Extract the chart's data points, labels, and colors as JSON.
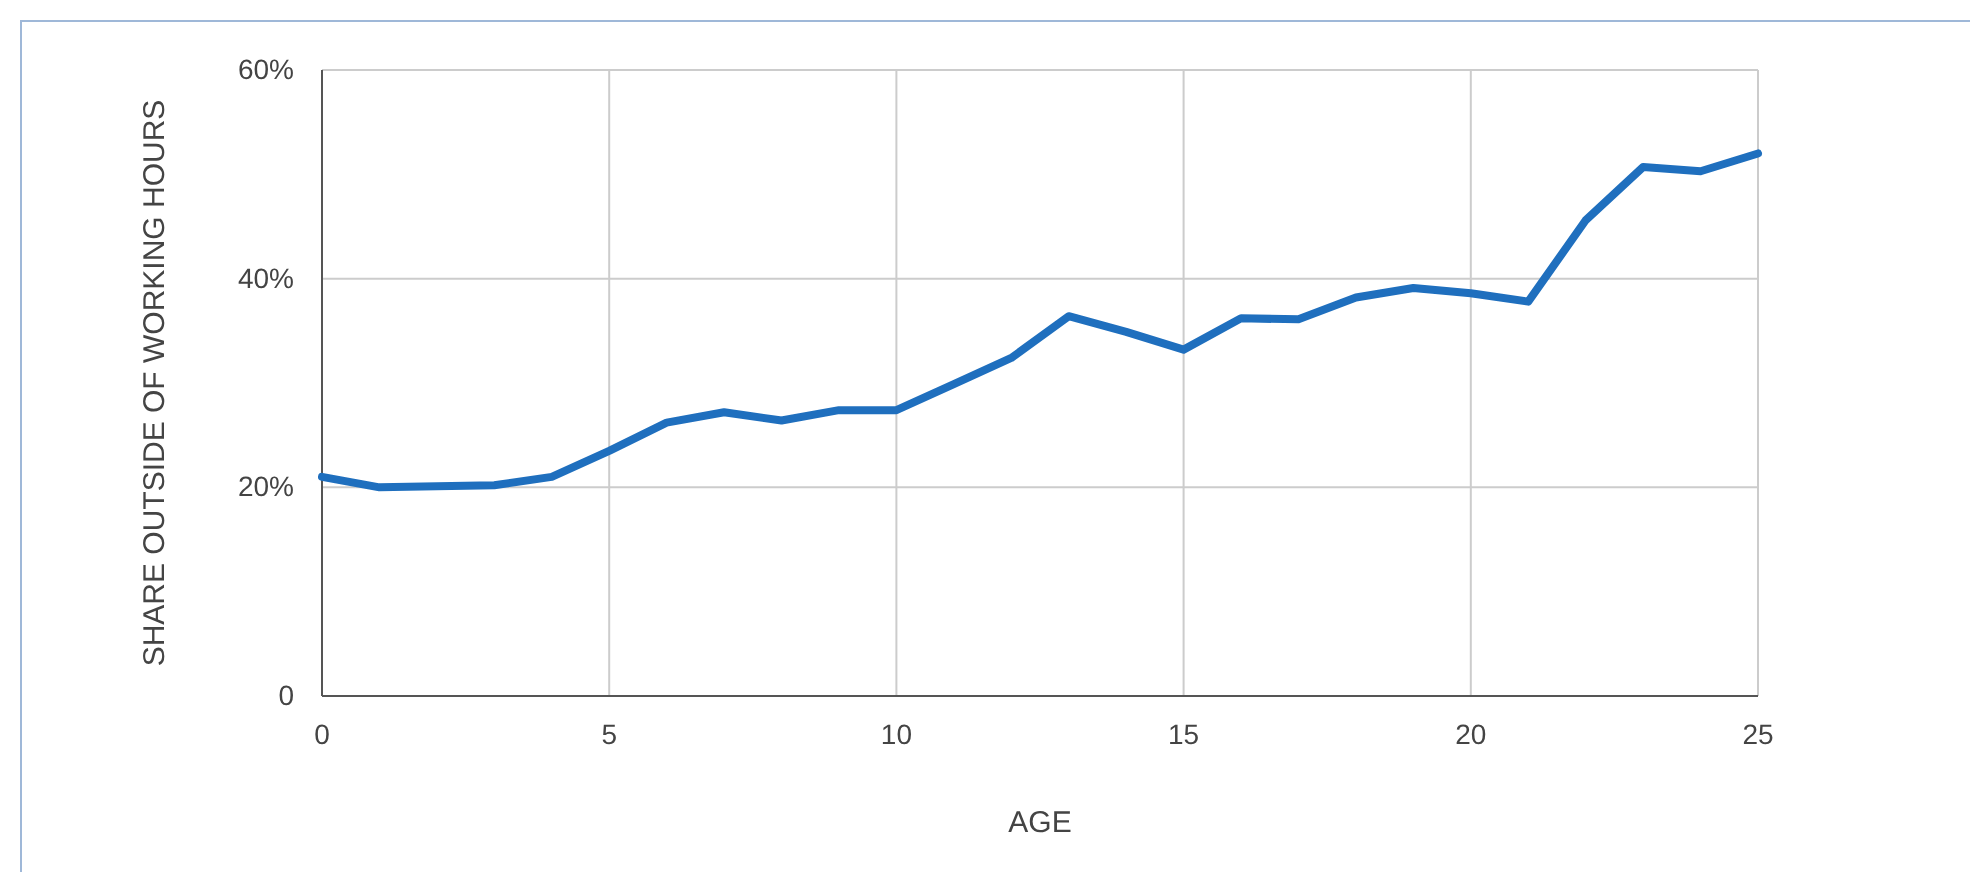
{
  "chart_data": {
    "type": "line",
    "xlabel": "AGE",
    "ylabel": "SHARE OUTSIDE OF WORKING HOURS",
    "x": [
      0,
      1,
      3,
      4,
      5,
      6,
      7,
      8,
      9,
      10,
      11,
      12,
      13,
      14,
      15,
      16,
      17,
      18,
      19,
      20,
      21,
      22,
      23,
      24,
      25
    ],
    "series": [
      {
        "color": "#1f6fbe",
        "values": [
          21,
          20,
          20.2,
          21,
          23.5,
          26.2,
          27.2,
          26.4,
          27.4,
          27.4,
          29.9,
          32.4,
          36.4,
          34.9,
          33.2,
          36.2,
          36.1,
          38.2,
          39.1,
          38.6,
          37.8,
          45.6,
          50.7,
          50.3,
          52
        ]
      }
    ],
    "xlim": [
      0,
      25
    ],
    "xticks": [
      0,
      5,
      10,
      15,
      20,
      25
    ],
    "ylim": [
      0,
      60
    ],
    "yticks": [
      0,
      {
        "value": 20,
        "label": "20%"
      },
      {
        "value": 40,
        "label": "40%"
      },
      {
        "value": 60,
        "label": "60%"
      }
    ],
    "grid": true,
    "marker": "none",
    "line_style": "solid"
  }
}
